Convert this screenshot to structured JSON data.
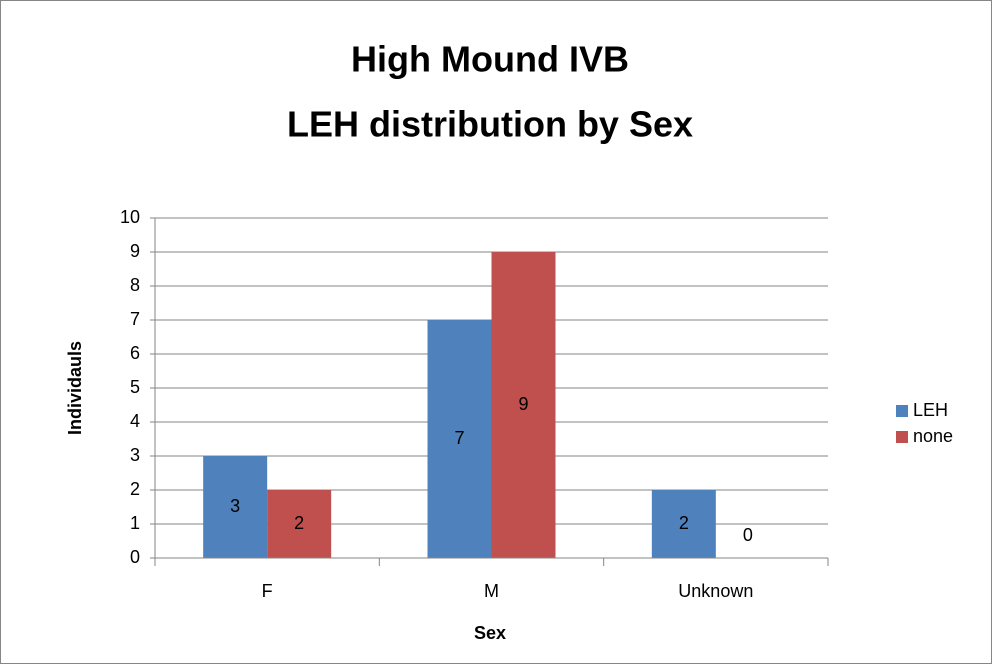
{
  "chart_data": {
    "type": "bar",
    "title": [
      "High Mound IVB",
      "LEH distribution by Sex"
    ],
    "x_label": "Sex",
    "y_label": "Individauls",
    "categories": [
      "F",
      "M",
      "Unknown"
    ],
    "series": [
      {
        "name": "LEH",
        "color": "#4f81bd",
        "values": [
          3,
          7,
          2
        ]
      },
      {
        "name": "none",
        "color": "#c0504d",
        "values": [
          2,
          9,
          0
        ]
      }
    ],
    "ylim": [
      0,
      10
    ],
    "yticks": [
      0,
      1,
      2,
      3,
      4,
      5,
      6,
      7,
      8,
      9,
      10
    ],
    "grid": true,
    "legend": "right"
  }
}
